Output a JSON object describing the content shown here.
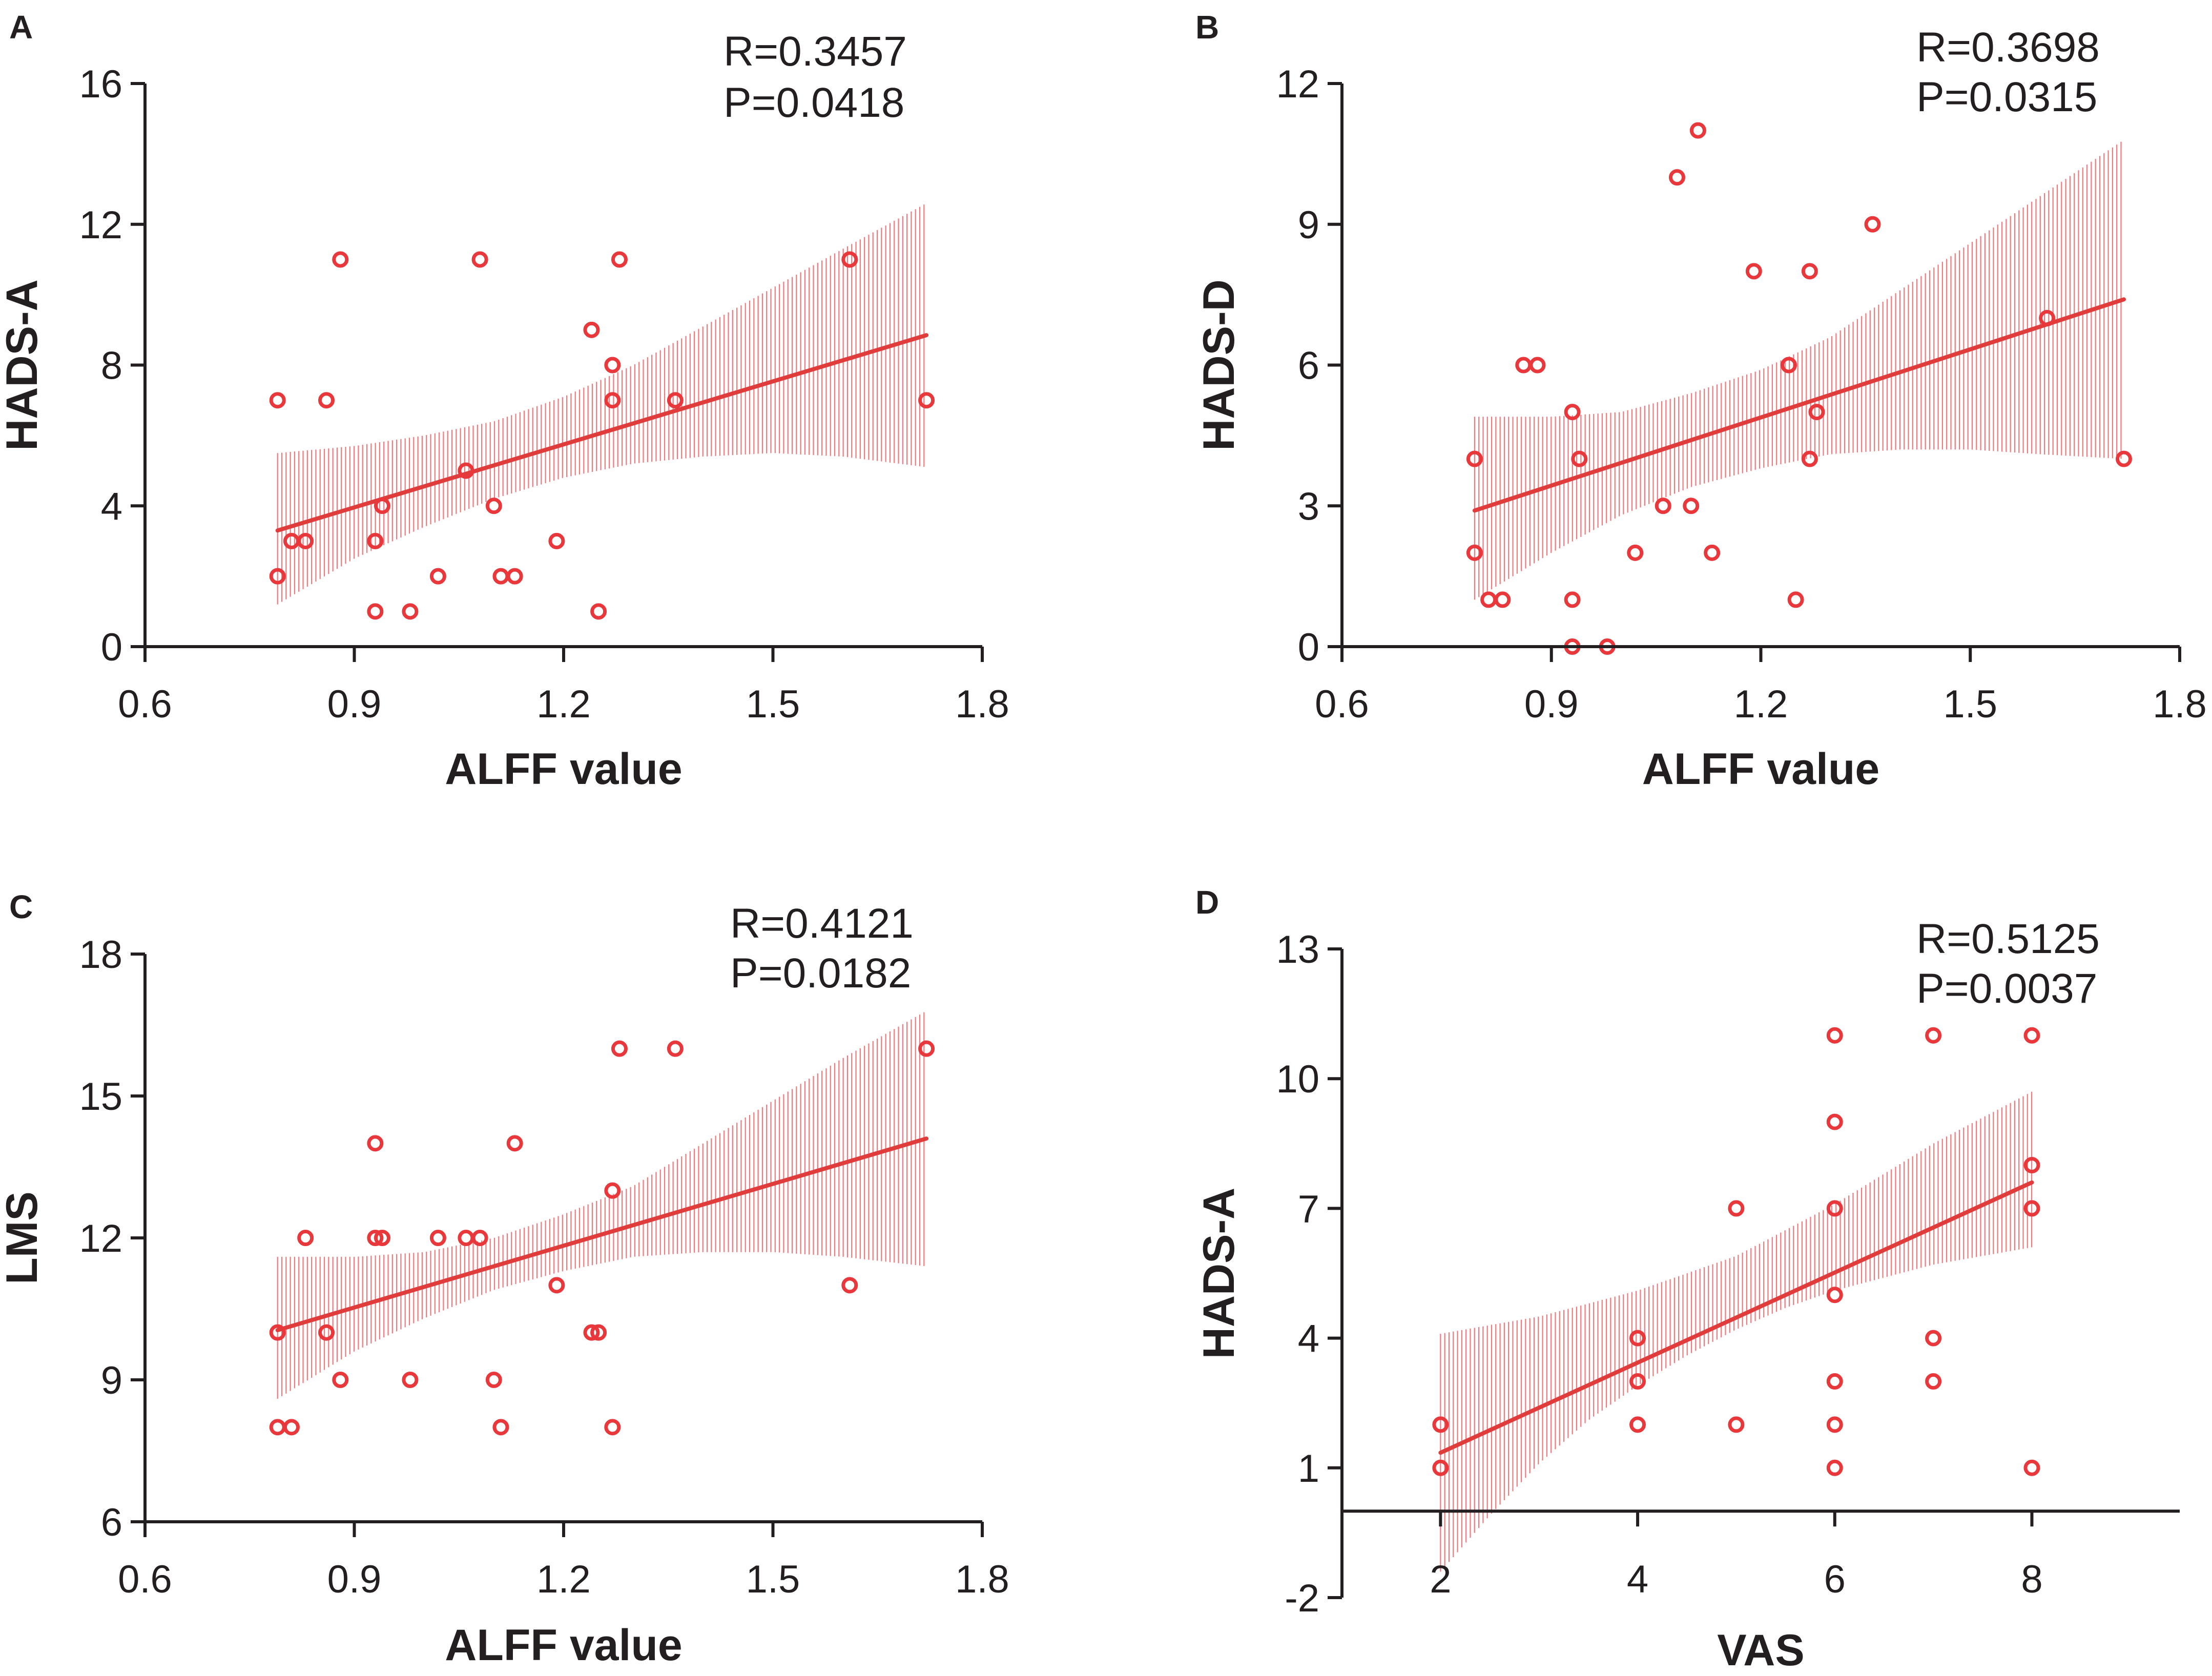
{
  "colors": {
    "points": "#e8383b",
    "fit": "#e03c3c",
    "ci": "#ee6266",
    "axis": "#231f20"
  },
  "chart_data": [
    {
      "type": "scatter",
      "panel": "A",
      "xlabel": "ALFF value",
      "ylabel": "HADS-A",
      "stats": [
        "R=0.3457",
        "P=0.0418"
      ],
      "xlim": [
        0.6,
        1.8
      ],
      "ylim": [
        0,
        16
      ],
      "xticks": [
        0.6,
        0.9,
        1.2,
        1.5,
        1.8
      ],
      "xtick_labels": [
        "0.6",
        "0.9",
        "1.2",
        "1.5",
        "1.8"
      ],
      "yticks": [
        0,
        4,
        8,
        12,
        16
      ],
      "ytick_labels": [
        "0",
        "4",
        "8",
        "12",
        "16"
      ],
      "fit": {
        "x": [
          0.79,
          1.72
        ],
        "y": [
          3.3,
          8.85
        ]
      },
      "ci": {
        "x": [
          0.79,
          0.9,
          1.0,
          1.1,
          1.2,
          1.3,
          1.4,
          1.5,
          1.6,
          1.72
        ],
        "lower": [
          1.2,
          2.5,
          3.4,
          4.2,
          4.8,
          5.2,
          5.4,
          5.5,
          5.4,
          5.1
        ],
        "upper": [
          5.5,
          5.7,
          6.0,
          6.4,
          7.1,
          8.0,
          9.1,
          10.2,
          11.3,
          12.6
        ]
      },
      "points": [
        [
          0.79,
          7
        ],
        [
          0.79,
          2
        ],
        [
          0.81,
          3
        ],
        [
          0.83,
          3
        ],
        [
          0.86,
          7
        ],
        [
          0.88,
          11
        ],
        [
          0.93,
          3
        ],
        [
          0.93,
          1
        ],
        [
          0.94,
          4
        ],
        [
          0.98,
          1
        ],
        [
          1.02,
          2
        ],
        [
          1.06,
          5
        ],
        [
          1.08,
          11
        ],
        [
          1.1,
          4
        ],
        [
          1.11,
          2
        ],
        [
          1.13,
          2
        ],
        [
          1.19,
          3
        ],
        [
          1.24,
          9
        ],
        [
          1.25,
          1
        ],
        [
          1.27,
          8
        ],
        [
          1.27,
          7
        ],
        [
          1.28,
          11
        ],
        [
          1.36,
          7
        ],
        [
          1.61,
          11
        ],
        [
          1.72,
          7
        ]
      ]
    },
    {
      "type": "scatter",
      "panel": "B",
      "xlabel": "ALFF value",
      "ylabel": "HADS-D",
      "stats": [
        "R=0.3698",
        "P=0.0315"
      ],
      "xlim": [
        0.6,
        1.8
      ],
      "ylim": [
        0,
        12
      ],
      "xticks": [
        0.6,
        0.9,
        1.2,
        1.5,
        1.8
      ],
      "xtick_labels": [
        "0.6",
        "0.9",
        "1.2",
        "1.5",
        "1.8"
      ],
      "yticks": [
        0,
        3,
        6,
        9,
        12
      ],
      "ytick_labels": [
        "0",
        "3",
        "6",
        "9",
        "12"
      ],
      "fit": {
        "x": [
          0.79,
          1.72
        ],
        "y": [
          2.9,
          7.4
        ]
      },
      "ci": {
        "x": [
          0.79,
          0.9,
          1.0,
          1.1,
          1.2,
          1.3,
          1.4,
          1.5,
          1.6,
          1.72
        ],
        "lower": [
          1.0,
          2.0,
          2.8,
          3.4,
          3.8,
          4.1,
          4.2,
          4.2,
          4.1,
          4.0
        ],
        "upper": [
          4.9,
          4.9,
          5.0,
          5.4,
          5.9,
          6.6,
          7.6,
          8.6,
          9.6,
          10.8
        ]
      },
      "points": [
        [
          0.79,
          4
        ],
        [
          0.79,
          2
        ],
        [
          0.81,
          1
        ],
        [
          0.83,
          1
        ],
        [
          0.86,
          6
        ],
        [
          0.88,
          6
        ],
        [
          0.93,
          5
        ],
        [
          0.93,
          1
        ],
        [
          0.93,
          0
        ],
        [
          0.94,
          4
        ],
        [
          0.98,
          0
        ],
        [
          1.02,
          2
        ],
        [
          1.06,
          3
        ],
        [
          1.08,
          10
        ],
        [
          1.1,
          3
        ],
        [
          1.11,
          11
        ],
        [
          1.13,
          2
        ],
        [
          1.19,
          8
        ],
        [
          1.24,
          6
        ],
        [
          1.25,
          1
        ],
        [
          1.27,
          8
        ],
        [
          1.27,
          4
        ],
        [
          1.28,
          5
        ],
        [
          1.36,
          9
        ],
        [
          1.61,
          7
        ],
        [
          1.72,
          4
        ]
      ]
    },
    {
      "type": "scatter",
      "panel": "C",
      "xlabel": "ALFF value",
      "ylabel": "LMS",
      "stats": [
        "R=0.4121",
        "P=0.0182"
      ],
      "xlim": [
        0.6,
        1.8
      ],
      "ylim": [
        6,
        18
      ],
      "xticks": [
        0.6,
        0.9,
        1.2,
        1.5,
        1.8
      ],
      "xtick_labels": [
        "0.6",
        "0.9",
        "1.2",
        "1.5",
        "1.8"
      ],
      "yticks": [
        6,
        9,
        12,
        15,
        18
      ],
      "ytick_labels": [
        "6",
        "9",
        "12",
        "15",
        "18"
      ],
      "fit": {
        "x": [
          0.79,
          1.72
        ],
        "y": [
          10.05,
          14.1
        ]
      },
      "ci": {
        "x": [
          0.79,
          0.9,
          1.0,
          1.1,
          1.2,
          1.3,
          1.4,
          1.5,
          1.6,
          1.72
        ],
        "lower": [
          8.6,
          9.6,
          10.3,
          10.9,
          11.3,
          11.6,
          11.7,
          11.7,
          11.6,
          11.4
        ],
        "upper": [
          11.6,
          11.6,
          11.7,
          12.0,
          12.5,
          13.1,
          14.0,
          14.9,
          15.8,
          16.8
        ]
      },
      "points": [
        [
          0.79,
          10
        ],
        [
          0.79,
          8
        ],
        [
          0.81,
          8
        ],
        [
          0.83,
          12
        ],
        [
          0.86,
          10
        ],
        [
          0.88,
          9
        ],
        [
          0.93,
          14
        ],
        [
          0.93,
          12
        ],
        [
          0.94,
          12
        ],
        [
          0.98,
          9
        ],
        [
          1.02,
          12
        ],
        [
          1.06,
          12
        ],
        [
          1.08,
          12
        ],
        [
          1.1,
          9
        ],
        [
          1.11,
          8
        ],
        [
          1.13,
          14
        ],
        [
          1.19,
          11
        ],
        [
          1.24,
          10
        ],
        [
          1.25,
          10
        ],
        [
          1.27,
          13
        ],
        [
          1.27,
          8
        ],
        [
          1.28,
          16
        ],
        [
          1.36,
          16
        ],
        [
          1.61,
          11
        ],
        [
          1.72,
          16
        ]
      ]
    },
    {
      "type": "scatter",
      "panel": "D",
      "xlabel": "VAS",
      "ylabel": "HADS-A",
      "stats": [
        "R=0.5125",
        "P=0.0037"
      ],
      "xlim": [
        1,
        9.5
      ],
      "ylim": [
        -2,
        13
      ],
      "x_axis_at": 0,
      "xticks": [
        2,
        4,
        6,
        8
      ],
      "xtick_labels": [
        "2",
        "4",
        "6",
        "8"
      ],
      "yticks": [
        -2,
        1,
        4,
        7,
        10,
        13
      ],
      "ytick_labels": [
        "-2",
        "1",
        "4",
        "7",
        "10",
        "13"
      ],
      "fit": {
        "x": [
          2,
          8
        ],
        "y": [
          1.35,
          7.6
        ]
      },
      "ci": {
        "x": [
          2,
          2.5,
          3,
          3.5,
          4,
          4.5,
          5,
          5.5,
          6,
          6.5,
          7,
          7.5,
          8
        ],
        "lower": [
          -1.4,
          -0.1,
          1.1,
          2.1,
          2.9,
          3.6,
          4.2,
          4.7,
          5.1,
          5.4,
          5.7,
          5.9,
          6.1
        ],
        "upper": [
          4.1,
          4.3,
          4.5,
          4.8,
          5.1,
          5.5,
          5.9,
          6.5,
          7.1,
          7.8,
          8.5,
          9.1,
          9.7
        ]
      },
      "points": [
        [
          2,
          2
        ],
        [
          2,
          1
        ],
        [
          4,
          4
        ],
        [
          4,
          3
        ],
        [
          4,
          2
        ],
        [
          5,
          7
        ],
        [
          5,
          2
        ],
        [
          6,
          11
        ],
        [
          6,
          9
        ],
        [
          6,
          7
        ],
        [
          6,
          5
        ],
        [
          6,
          3
        ],
        [
          6,
          2
        ],
        [
          6,
          1
        ],
        [
          7,
          11
        ],
        [
          7,
          4
        ],
        [
          7,
          3
        ],
        [
          8,
          11
        ],
        [
          8,
          8
        ],
        [
          8,
          7
        ],
        [
          8,
          1
        ]
      ]
    }
  ]
}
